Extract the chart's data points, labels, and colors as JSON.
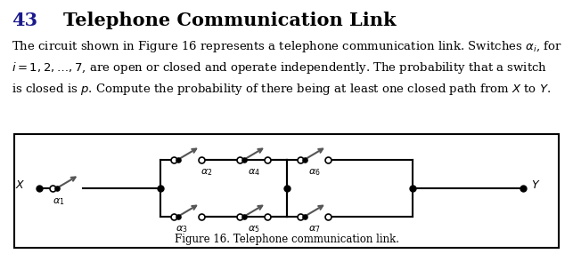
{
  "title_number": "43",
  "title_text": "Telephone Communication Link",
  "body_text": "The circuit shown in Figure 16 represents a telephone communication link. Switches $\\alpha_i$, for\n$i = 1, 2, \\ldots, 7$, are open or closed and operate independently. The probability that a switch\nis closed is $p$. Compute the probability of there being at least one closed path from $X$ to $Y$.",
  "figure_caption": "Figure 16. Telephone communication link.",
  "background_color": "#ffffff",
  "box_color": "#000000",
  "line_color": "#000000",
  "title_color": "#1a1a8c",
  "text_color": "#000000",
  "switch_color": "#555555",
  "node_color": "#000000",
  "open_node_color": "#ffffff"
}
